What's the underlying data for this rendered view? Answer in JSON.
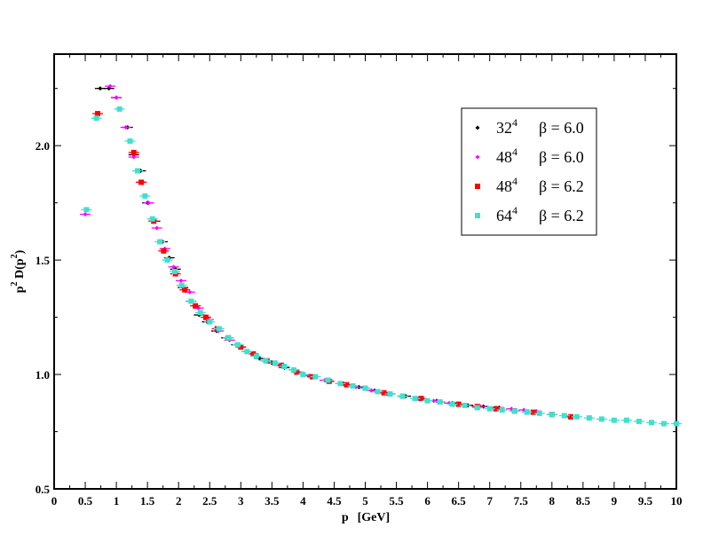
{
  "chart_data": {
    "type": "scatter",
    "title": "",
    "xlabel": {
      "base": "p",
      "unit": "[GeV]"
    },
    "ylabel": {
      "p": "p",
      "p_exp": "2",
      "mid": " D(p",
      "inner_exp": "2",
      "close": ")"
    },
    "xlim": [
      0,
      10
    ],
    "ylim": [
      0.5,
      2.4
    ],
    "x_major_ticks": [
      0,
      0.5,
      1,
      1.5,
      2,
      2.5,
      3,
      3.5,
      4,
      4.5,
      5,
      5.5,
      6,
      6.5,
      7,
      7.5,
      8,
      8.5,
      9,
      9.5,
      10
    ],
    "x_tick_labels": [
      "0",
      "0.5",
      "1",
      "1.5",
      "2",
      "2.5",
      "3",
      "3.5",
      "4",
      "4.5",
      "5",
      "5.5",
      "6",
      "6.5",
      "7",
      "7.5",
      "8",
      "8.5",
      "9",
      "9.5",
      "10"
    ],
    "y_major_ticks": [
      0.5,
      1.0,
      1.5,
      2.0
    ],
    "y_tick_labels": [
      "0.5",
      "1.0",
      "1.5",
      "2.0"
    ],
    "grid": false,
    "legend_position": "top-right",
    "series": [
      {
        "lattice": "32",
        "lattice_exp": "4",
        "beta_label": "β = 6.0",
        "color": "#000000",
        "marker": "diamond",
        "points": [
          [
            0.74,
            2.25
          ],
          [
            0.88,
            2.25
          ],
          [
            1.0,
            2.21
          ],
          [
            1.18,
            2.08
          ],
          [
            1.28,
            1.96
          ],
          [
            1.39,
            1.89
          ],
          [
            1.5,
            1.75
          ],
          [
            1.62,
            1.67
          ],
          [
            1.74,
            1.58
          ],
          [
            1.85,
            1.51
          ],
          [
            1.95,
            1.46
          ],
          [
            2.07,
            1.38
          ],
          [
            2.2,
            1.32
          ],
          [
            2.33,
            1.26
          ],
          [
            2.46,
            1.23
          ],
          [
            2.61,
            1.19
          ],
          [
            2.77,
            1.16
          ],
          [
            2.93,
            1.13
          ],
          [
            3.1,
            1.1
          ],
          [
            3.3,
            1.07
          ],
          [
            3.5,
            1.05
          ],
          [
            3.7,
            1.03
          ],
          [
            3.92,
            1.01
          ],
          [
            4.15,
            0.99
          ],
          [
            4.4,
            0.975
          ],
          [
            4.65,
            0.96
          ],
          [
            4.9,
            0.945
          ],
          [
            5.15,
            0.93
          ],
          [
            5.4,
            0.915
          ],
          [
            5.65,
            0.905
          ],
          [
            5.9,
            0.895
          ],
          [
            6.15,
            0.885
          ],
          [
            6.4,
            0.875
          ],
          [
            6.65,
            0.865
          ],
          [
            6.9,
            0.86
          ],
          [
            7.15,
            0.855
          ]
        ]
      },
      {
        "lattice": "48",
        "lattice_exp": "4",
        "beta_label": "β = 6.0",
        "color": "#ff00ff",
        "marker": "diamond",
        "points": [
          [
            0.5,
            1.7
          ],
          [
            0.9,
            2.26
          ],
          [
            1.0,
            2.21
          ],
          [
            1.15,
            2.08
          ],
          [
            1.28,
            1.95
          ],
          [
            1.4,
            1.84
          ],
          [
            1.52,
            1.75
          ],
          [
            1.65,
            1.64
          ],
          [
            1.78,
            1.55
          ],
          [
            1.92,
            1.47
          ],
          [
            2.04,
            1.41
          ],
          [
            2.18,
            1.36
          ],
          [
            2.32,
            1.29
          ],
          [
            2.48,
            1.24
          ],
          [
            2.64,
            1.19
          ],
          [
            2.82,
            1.15
          ],
          [
            3.0,
            1.12
          ],
          [
            3.2,
            1.09
          ],
          [
            3.4,
            1.06
          ],
          [
            3.62,
            1.04
          ],
          [
            3.85,
            1.02
          ],
          [
            4.1,
            0.995
          ],
          [
            4.35,
            0.975
          ],
          [
            4.6,
            0.96
          ],
          [
            4.85,
            0.945
          ],
          [
            5.1,
            0.93
          ],
          [
            5.35,
            0.915
          ],
          [
            5.6,
            0.905
          ],
          [
            5.85,
            0.895
          ],
          [
            6.1,
            0.885
          ],
          [
            6.35,
            0.875
          ],
          [
            6.6,
            0.865
          ],
          [
            6.85,
            0.86
          ],
          [
            7.1,
            0.855
          ],
          [
            7.35,
            0.85
          ],
          [
            7.55,
            0.845
          ],
          [
            7.75,
            0.84
          ]
        ]
      },
      {
        "lattice": "48",
        "lattice_exp": "4",
        "beta_label": "β = 6.2",
        "color": "#ff0000",
        "marker": "square",
        "points": [
          [
            0.7,
            2.14
          ],
          [
            1.28,
            1.97
          ],
          [
            1.4,
            1.84
          ],
          [
            1.6,
            1.67
          ],
          [
            1.76,
            1.54
          ],
          [
            1.95,
            1.44
          ],
          [
            2.1,
            1.37
          ],
          [
            2.27,
            1.3
          ],
          [
            2.44,
            1.25
          ],
          [
            2.62,
            1.2
          ],
          [
            2.8,
            1.16
          ],
          [
            3.0,
            1.12
          ],
          [
            3.2,
            1.09
          ],
          [
            3.42,
            1.06
          ],
          [
            3.65,
            1.04
          ],
          [
            3.9,
            1.01
          ],
          [
            4.15,
            0.99
          ],
          [
            4.42,
            0.97
          ],
          [
            4.7,
            0.955
          ],
          [
            5.0,
            0.94
          ],
          [
            5.3,
            0.92
          ],
          [
            5.6,
            0.905
          ],
          [
            5.9,
            0.895
          ],
          [
            6.2,
            0.88
          ],
          [
            6.5,
            0.87
          ],
          [
            6.8,
            0.86
          ],
          [
            7.1,
            0.85
          ],
          [
            7.4,
            0.84
          ],
          [
            7.7,
            0.835
          ],
          [
            8.0,
            0.825
          ],
          [
            8.3,
            0.815
          ]
        ]
      },
      {
        "lattice": "64",
        "lattice_exp": "4",
        "beta_label": "β = 6.2",
        "color": "#40e0d0",
        "marker": "square",
        "points": [
          [
            0.52,
            1.72
          ],
          [
            0.68,
            2.12
          ],
          [
            1.05,
            2.16
          ],
          [
            1.22,
            2.02
          ],
          [
            1.34,
            1.89
          ],
          [
            1.46,
            1.78
          ],
          [
            1.58,
            1.68
          ],
          [
            1.7,
            1.58
          ],
          [
            1.82,
            1.5
          ],
          [
            1.94,
            1.45
          ],
          [
            2.05,
            1.39
          ],
          [
            2.2,
            1.32
          ],
          [
            2.35,
            1.27
          ],
          [
            2.5,
            1.23
          ],
          [
            2.65,
            1.2
          ],
          [
            2.8,
            1.16
          ],
          [
            2.95,
            1.13
          ],
          [
            3.1,
            1.1
          ],
          [
            3.25,
            1.08
          ],
          [
            3.4,
            1.06
          ],
          [
            3.55,
            1.05
          ],
          [
            3.7,
            1.035
          ],
          [
            3.85,
            1.02
          ],
          [
            4.0,
            1.0
          ],
          [
            4.2,
            0.99
          ],
          [
            4.4,
            0.975
          ],
          [
            4.6,
            0.96
          ],
          [
            4.8,
            0.95
          ],
          [
            5.0,
            0.94
          ],
          [
            5.2,
            0.925
          ],
          [
            5.4,
            0.915
          ],
          [
            5.6,
            0.905
          ],
          [
            5.8,
            0.895
          ],
          [
            6.0,
            0.885
          ],
          [
            6.2,
            0.88
          ],
          [
            6.4,
            0.87
          ],
          [
            6.6,
            0.865
          ],
          [
            6.8,
            0.855
          ],
          [
            7.0,
            0.85
          ],
          [
            7.2,
            0.845
          ],
          [
            7.4,
            0.84
          ],
          [
            7.6,
            0.835
          ],
          [
            7.8,
            0.83
          ],
          [
            8.0,
            0.825
          ],
          [
            8.2,
            0.82
          ],
          [
            8.4,
            0.815
          ],
          [
            8.6,
            0.81
          ],
          [
            8.8,
            0.805
          ],
          [
            9.0,
            0.8
          ],
          [
            9.2,
            0.8
          ],
          [
            9.4,
            0.795
          ],
          [
            9.6,
            0.79
          ],
          [
            9.8,
            0.785
          ],
          [
            10.0,
            0.785
          ]
        ]
      }
    ]
  }
}
